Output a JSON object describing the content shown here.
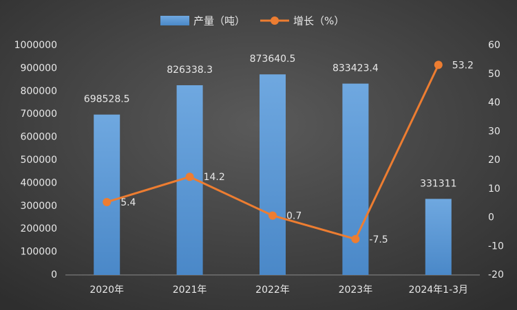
{
  "chart_data": {
    "type": "bar",
    "categories": [
      "2020年",
      "2021年",
      "2022年",
      "2023年",
      "2024年1-3月"
    ],
    "series": [
      {
        "name": "产量（吨）",
        "type": "bar",
        "color": "#5b9bd5",
        "values": [
          698528.5,
          826338.3,
          873640.5,
          833423.4,
          331311
        ]
      },
      {
        "name": "增长（%）",
        "type": "line",
        "axis": "y2",
        "color": "#ed7d31",
        "values": [
          5.4,
          14.2,
          0.7,
          -7.5,
          53.2
        ]
      }
    ],
    "ylim": [
      0,
      1000000
    ],
    "yticks": [
      0,
      100000,
      200000,
      300000,
      400000,
      500000,
      600000,
      700000,
      800000,
      900000,
      1000000
    ],
    "y2lim": [
      -20,
      60
    ],
    "y2ticks": [
      -20,
      -10,
      0,
      10,
      20,
      30,
      40,
      50,
      60
    ]
  }
}
